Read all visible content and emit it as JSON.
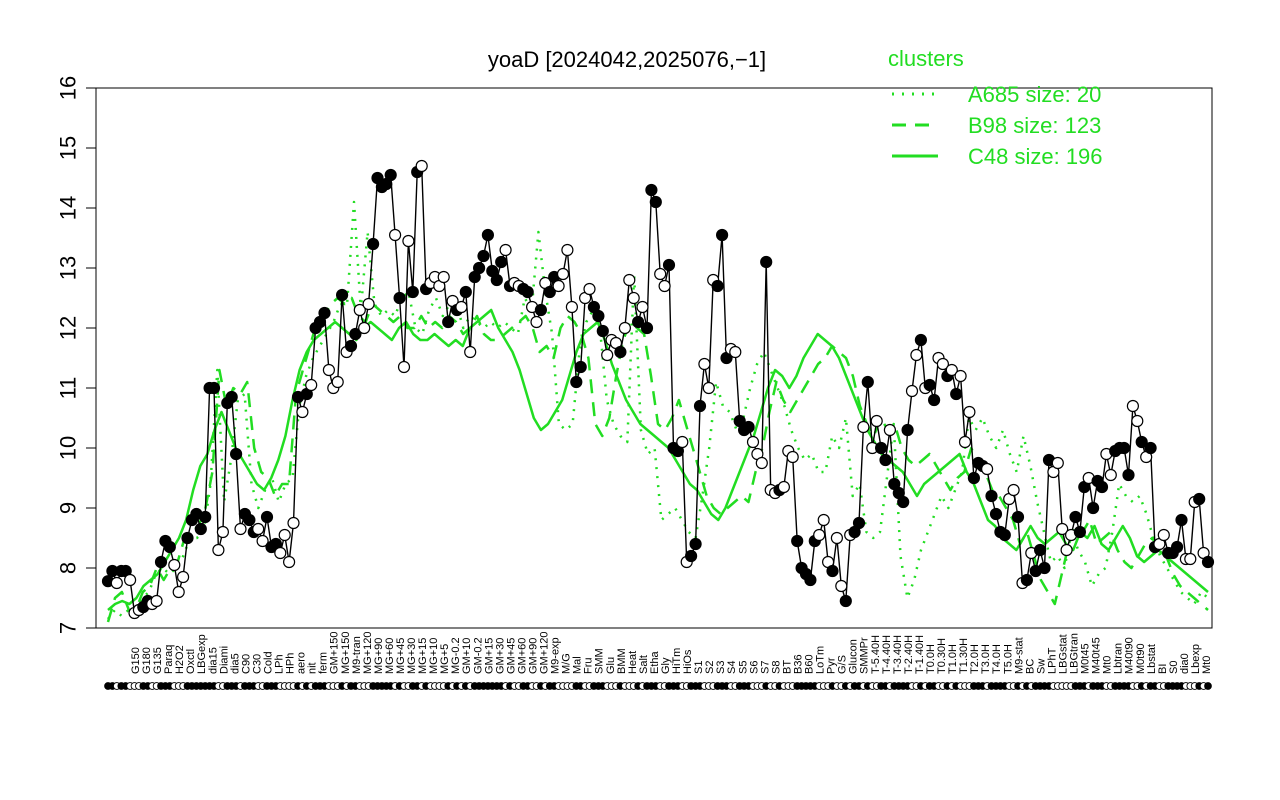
{
  "chart_data": {
    "type": "line",
    "title": "yoaD [2024042,2025076,−1]",
    "ylim": [
      7,
      16
    ],
    "yticks": [
      7,
      8,
      9,
      10,
      11,
      12,
      13,
      14,
      15,
      16
    ],
    "xtick_labels": [
      "G150",
      "G180",
      "G135",
      "Paraq",
      "H2O2",
      "Oxctl",
      "LBGexp",
      "dia15",
      "Diami",
      "dia5",
      "C90",
      "C30",
      "Cold",
      "LPh",
      "HPh",
      "aero",
      "nit",
      "ferm",
      "GM+150",
      "MG+150",
      "M9-tran",
      "MG+120",
      "MG+90",
      "MG+60",
      "MG+45",
      "MG+30",
      "MG+15",
      "MG+10",
      "MG+5",
      "MG-0.2",
      "GM+10",
      "GM-0.2",
      "GM+15",
      "GM+30",
      "GM+45",
      "GM+60",
      "GM+90",
      "GM+120",
      "M9-exp",
      "M/G",
      "Mal",
      "Fru",
      "SMM",
      "Glu",
      "BMM",
      "Heat",
      "Salt",
      "Etha",
      "Gly",
      "HiTm",
      "HiOs",
      "S1",
      "S2",
      "S3",
      "S4",
      "S5",
      "S6",
      "S7",
      "S8",
      "BT",
      "B36",
      "B60",
      "LoTm",
      "Pyr",
      "G/S",
      "Glucon",
      "SMMPr",
      "T-5.40H",
      "T-4.40H",
      "T-3.40H",
      "T-2.40H",
      "T-1.40H",
      "T0.0H",
      "T0.30H",
      "T1.0H",
      "T1.30H",
      "T2.0H",
      "T3.0H",
      "T4.0H",
      "T5.0H",
      "M9-stat",
      "BC",
      "Sw",
      "LPhT",
      "LBGstat",
      "LBGtran",
      "M0t45",
      "M40t45",
      "Mt0",
      "Lbtran",
      "M40t90",
      "M0t90",
      "Lbstat",
      "BI",
      "S0",
      "dia0",
      "Lbexp",
      "Mt0"
    ],
    "points": [
      7.78,
      7.95,
      7.75,
      7.95,
      7.95,
      7.8,
      7.25,
      7.3,
      7.35,
      7.45,
      7.4,
      7.45,
      8.1,
      8.45,
      8.35,
      8.05,
      7.6,
      7.85,
      8.5,
      8.8,
      8.9,
      8.65,
      8.85,
      11.0,
      11.0,
      8.3,
      8.6,
      10.75,
      10.85,
      9.9,
      8.65,
      8.9,
      8.8,
      8.6,
      8.65,
      8.45,
      8.85,
      8.35,
      8.4,
      8.25,
      8.55,
      8.1,
      8.75,
      10.85,
      10.6,
      10.9,
      11.05,
      12.0,
      12.1,
      12.25,
      11.3,
      11.0,
      11.1,
      12.55,
      11.6,
      11.7,
      11.9,
      12.3,
      12.0,
      12.4,
      13.4,
      14.5,
      14.35,
      14.4,
      14.55,
      13.55,
      12.5,
      11.35,
      13.45,
      12.6,
      14.6,
      14.7,
      12.65,
      12.75,
      12.85,
      12.7,
      12.85,
      12.1,
      12.45,
      12.3,
      12.35,
      12.6,
      11.6,
      12.85,
      13.0,
      13.2,
      13.55,
      12.95,
      12.8,
      13.1,
      13.3,
      12.7,
      12.75,
      12.7,
      12.65,
      12.6,
      12.35,
      12.1,
      12.3,
      12.75,
      12.6,
      12.85,
      12.7,
      12.9,
      13.3,
      12.35,
      11.1,
      11.35,
      12.5,
      12.65,
      12.35,
      12.2,
      11.95,
      11.55,
      11.8,
      11.75,
      11.6,
      12.0,
      12.8,
      12.5,
      12.1,
      12.35,
      12.0,
      14.3,
      14.1,
      12.9,
      12.7,
      13.05,
      10.0,
      9.95,
      10.1,
      8.1,
      8.2,
      8.4,
      10.7,
      11.4,
      11.0,
      12.8,
      12.7,
      13.55,
      11.5,
      11.65,
      11.6,
      10.45,
      10.3,
      10.35,
      10.1,
      9.9,
      9.75,
      13.1,
      9.3,
      9.25,
      9.3,
      9.35,
      9.95,
      9.85,
      8.45,
      8.0,
      7.9,
      7.8,
      8.45,
      8.55,
      8.8,
      8.1,
      7.95,
      8.5,
      7.7,
      7.45,
      8.55,
      8.6,
      8.75,
      10.35,
      11.1,
      10.0,
      10.45,
      10.0,
      9.8,
      10.3,
      9.4,
      9.25,
      9.1,
      10.3,
      10.95,
      11.55,
      11.8,
      11.0,
      11.05,
      10.8,
      11.5,
      11.4,
      11.2,
      11.3,
      10.9,
      11.2,
      10.1,
      10.6,
      9.5,
      9.75,
      9.7,
      9.65,
      9.2,
      8.9,
      8.6,
      8.55,
      9.15,
      9.3,
      8.85,
      7.75,
      7.8,
      8.25,
      7.95,
      8.3,
      8.0,
      9.8,
      9.6,
      9.75,
      8.65,
      8.3,
      8.55,
      8.85,
      8.6,
      9.35,
      9.5,
      9.0,
      9.45,
      9.35,
      9.9,
      9.55,
      9.95,
      10.0,
      10.0,
      9.55,
      10.7,
      10.45,
      10.1,
      9.85,
      10.0,
      8.35,
      8.4,
      8.55,
      8.25,
      8.25,
      8.35,
      8.8,
      8.15,
      8.15,
      9.1,
      9.15,
      8.25,
      8.1
    ],
    "filled": [
      1,
      1,
      0,
      1,
      1,
      0,
      0,
      0,
      1,
      1,
      0,
      0,
      1,
      1,
      1,
      0,
      0,
      0,
      1,
      1,
      1,
      1,
      1,
      1,
      1,
      0,
      0,
      1,
      1,
      1,
      0,
      1,
      1,
      1,
      0,
      0,
      1,
      1,
      1,
      0,
      0,
      0,
      0,
      1,
      0,
      1,
      0,
      1,
      1,
      1,
      0,
      0,
      0,
      1,
      0,
      1,
      1,
      0,
      0,
      0,
      1,
      1,
      1,
      1,
      1,
      0,
      1,
      0,
      0,
      1,
      1,
      0,
      1,
      0,
      0,
      0,
      0,
      1,
      0,
      1,
      0,
      1,
      0,
      1,
      1,
      1,
      1,
      1,
      1,
      1,
      0,
      1,
      0,
      0,
      1,
      1,
      0,
      0,
      1,
      0,
      1,
      1,
      0,
      0,
      0,
      0,
      1,
      1,
      0,
      0,
      1,
      1,
      1,
      0,
      0,
      0,
      1,
      0,
      0,
      0,
      1,
      0,
      1,
      1,
      1,
      0,
      0,
      1,
      1,
      1,
      0,
      0,
      1,
      1,
      1,
      0,
      0,
      0,
      1,
      1,
      1,
      0,
      0,
      1,
      1,
      1,
      0,
      0,
      0,
      1,
      0,
      0,
      1,
      0,
      0,
      0,
      1,
      1,
      1,
      1,
      1,
      0,
      0,
      0,
      1,
      0,
      0,
      1,
      0,
      1,
      1,
      0,
      1,
      0,
      0,
      1,
      1,
      0,
      1,
      1,
      1,
      1,
      0,
      0,
      1,
      0,
      1,
      1,
      0,
      0,
      1,
      0,
      1,
      0,
      0,
      0,
      1,
      1,
      1,
      0,
      1,
      1,
      1,
      1,
      0,
      0,
      1,
      0,
      1,
      0,
      1,
      1,
      1,
      1,
      0,
      0,
      0,
      0,
      0,
      1,
      1,
      1,
      0,
      1,
      1,
      1,
      0,
      0,
      1,
      1,
      1,
      1,
      0,
      0,
      1,
      0,
      1,
      1,
      0,
      0,
      1,
      1,
      1,
      1,
      0,
      0,
      0,
      1,
      0,
      1,
      1,
      0,
      0,
      0,
      1
    ],
    "clusters": {
      "A685": [
        7.15,
        7.3,
        7.2,
        7.3,
        7.2,
        7.5,
        7.6,
        7.9,
        8.0,
        7.9,
        8.0,
        8.2,
        8.5,
        8.5,
        8.6,
        9.4,
        11.3,
        9.1,
        9.8,
        10.8,
        10.9,
        9.4,
        9.0,
        9.3,
        9.5,
        9.1,
        9.4,
        9.5,
        10.7,
        11.2,
        11.5,
        11.7,
        11.9,
        12.1,
        12.4,
        12.4,
        14.1,
        12.3,
        13.6,
        12.4,
        12.2,
        12.3,
        12.2,
        12.5,
        12.6,
        12.0,
        11.9,
        12.3,
        12.5,
        12.2,
        12.4,
        12.4,
        12.0,
        12.2,
        12.1,
        12.0,
        12.1,
        12.0,
        12.1,
        12.0,
        11.9,
        12.5,
        12.3,
        13.6,
        12.6,
        11.9,
        10.4,
        10.3,
        10.4,
        11.6,
        12.1,
        12.3,
        12.0,
        10.8,
        10.4,
        10.2,
        10.1,
        12.9,
        10.3,
        9.9,
        10.0,
        8.8,
        8.9,
        9.0,
        8.8,
        8.6,
        8.5,
        9.2,
        10.0,
        11.1,
        10.7,
        10.6,
        10.3,
        10.5,
        11.0,
        11.4,
        11.6,
        11.3,
        11.0,
        10.7,
        10.3,
        10.0,
        9.8,
        9.9,
        9.6,
        9.6,
        10.2,
        10.0,
        10.5,
        9.2,
        9.4,
        8.6,
        8.5,
        8.6,
        9.5,
        10.4,
        8.2,
        7.5,
        7.8,
        8.3,
        8.6,
        8.9,
        9.2,
        9.0,
        9.3,
        9.6,
        10.5,
        10.3,
        10.5,
        10.2,
        10.0,
        10.3,
        9.9,
        9.6,
        10.2,
        9.7,
        9.1,
        8.6,
        8.1,
        8.2,
        8.0,
        8.6,
        8.3,
        8.1,
        7.7,
        7.9,
        8.0,
        8.6,
        9.4,
        9.2,
        9.1,
        9.2,
        8.9,
        8.5,
        8.2,
        8.0,
        7.8,
        7.6,
        7.5,
        7.4,
        7.6,
        7.5
      ],
      "B98": [
        7.1,
        7.5,
        7.6,
        7.3,
        7.3,
        7.6,
        7.7,
        8.0,
        7.8,
        8.0,
        8.1,
        8.5,
        8.6,
        8.7,
        9.0,
        9.6,
        11.3,
        10.7,
        11.0,
        10.9,
        11.1,
        10.0,
        9.6,
        9.5,
        9.2,
        9.4,
        9.4,
        10.9,
        11.3,
        11.7,
        12.1,
        12.2,
        12.4,
        12.5,
        12.4,
        12.5,
        12.2,
        12.1,
        12.4,
        12.3,
        12.2,
        12.1,
        12.2,
        12.0,
        12.0,
        12.2,
        12.0,
        12.1,
        12.0,
        12.2,
        12.1,
        11.9,
        12.0,
        12.2,
        11.9,
        11.8,
        11.8,
        11.9,
        12.0,
        12.1,
        12.2,
        12.0,
        11.6,
        11.7,
        11.5,
        12.0,
        12.2,
        12.1,
        11.9,
        11.5,
        10.4,
        10.2,
        10.5,
        11.2,
        11.8,
        12.1,
        12.0,
        11.9,
        11.2,
        10.4,
        10.3,
        10.5,
        10.8,
        10.4,
        10.0,
        9.6,
        9.2,
        9.0,
        8.9,
        9.0,
        9.1,
        9.2,
        9.1,
        9.6,
        10.0,
        10.6,
        11.1,
        10.8,
        10.6,
        10.8,
        11.0,
        11.2,
        11.4,
        11.5,
        11.7,
        11.6,
        11.5,
        11.2,
        10.7,
        10.4,
        10.2,
        10.5,
        10.3,
        10.4,
        10.0,
        9.8,
        9.7,
        9.8,
        9.9,
        9.7,
        9.5,
        9.3,
        9.5,
        9.6,
        10.0,
        9.7,
        9.6,
        9.3,
        9.2,
        9.0,
        8.8,
        8.4,
        8.6,
        8.2,
        7.8,
        7.6,
        7.4,
        7.9,
        8.4,
        8.7,
        8.6,
        8.8,
        8.4,
        8.5,
        8.6,
        8.3,
        8.1,
        8.0,
        8.2,
        8.4,
        8.5,
        8.3,
        8.2,
        7.9,
        7.7,
        7.6,
        7.5,
        7.4,
        7.3
      ],
      "C48": [
        7.3,
        7.4,
        7.45,
        7.4,
        7.5,
        7.7,
        7.8,
        7.9,
        8.1,
        8.3,
        8.5,
        8.8,
        9.3,
        9.7,
        9.9,
        10.3,
        10.6,
        10.3,
        10.0,
        9.8,
        9.6,
        9.4,
        9.3,
        9.5,
        9.8,
        10.2,
        10.8,
        11.3,
        11.6,
        11.8,
        11.9,
        12.0,
        12.1,
        12.0,
        11.9,
        11.8,
        12.0,
        12.1,
        12.0,
        11.9,
        11.8,
        12.0,
        12.1,
        11.9,
        11.8,
        11.8,
        11.9,
        11.8,
        11.7,
        11.8,
        11.7,
        12.0,
        12.1,
        12.2,
        12.3,
        12.0,
        11.8,
        11.6,
        11.3,
        10.9,
        10.5,
        10.3,
        10.4,
        10.6,
        10.8,
        11.2,
        11.6,
        11.9,
        12.0,
        12.1,
        11.8,
        11.4,
        11.1,
        10.8,
        10.6,
        10.4,
        10.3,
        10.2,
        10.1,
        10.0,
        9.8,
        9.6,
        9.4,
        9.3,
        9.1,
        8.9,
        8.8,
        9.0,
        9.3,
        9.6,
        9.9,
        10.2,
        10.6,
        11.0,
        11.3,
        11.2,
        11.0,
        11.2,
        11.5,
        11.7,
        11.9,
        11.8,
        11.7,
        11.5,
        11.2,
        10.9,
        10.6,
        10.3,
        10.1,
        9.9,
        9.8,
        9.7,
        9.6,
        9.4,
        9.2,
        9.4,
        9.5,
        9.6,
        9.7,
        9.8,
        9.9,
        9.6,
        9.4,
        9.1,
        8.8,
        8.7,
        8.5,
        8.4,
        8.3,
        8.5,
        8.7,
        8.5,
        8.4,
        8.5,
        8.6,
        8.4,
        8.3,
        8.6,
        8.5,
        8.7,
        8.4,
        8.3,
        8.5,
        8.7,
        8.5,
        8.2,
        8.1,
        8.2,
        8.3,
        8.2,
        8.1,
        8.0,
        7.9,
        7.8,
        7.7,
        7.6
      ]
    },
    "legend": {
      "title": "clusters",
      "position": "top-right",
      "color": "#22dd22",
      "entries": [
        {
          "label": "A685 size: 20",
          "style": "dotted"
        },
        {
          "label": "B98 size: 123",
          "style": "dashed"
        },
        {
          "label": "C48 size: 196",
          "style": "solid"
        }
      ]
    },
    "colors": {
      "cluster": "#22dd22",
      "series": "#000000",
      "axis": "#000000"
    }
  }
}
